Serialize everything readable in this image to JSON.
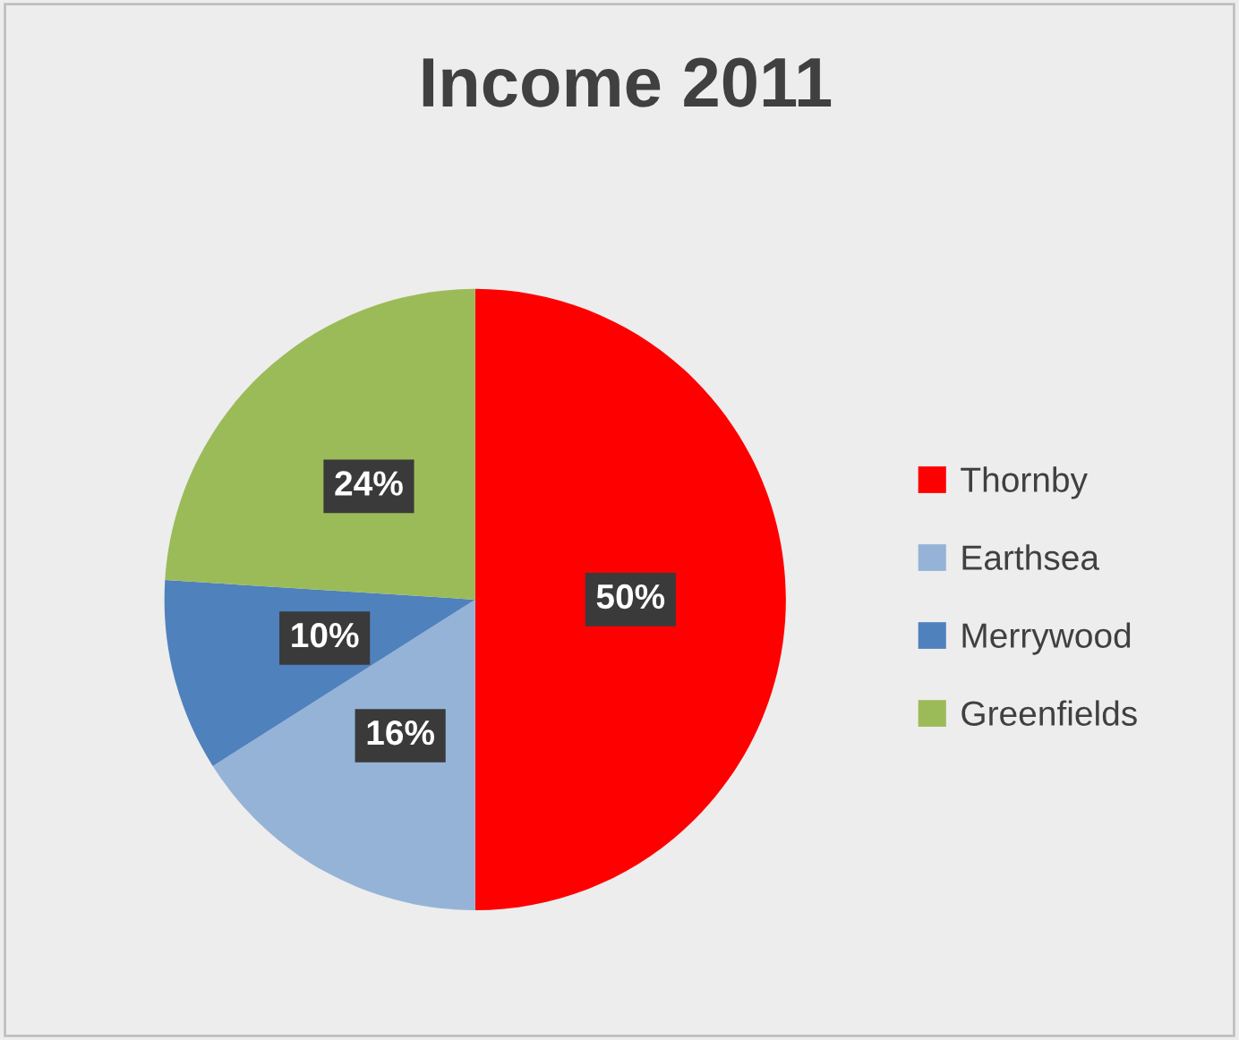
{
  "chart_data": {
    "type": "pie",
    "title": "Income 2011",
    "categories": [
      "Thornby",
      "Earthsea",
      "Merrywood",
      "Greenfields"
    ],
    "values": [
      50,
      16,
      10,
      24
    ],
    "colors": [
      "#ff0000",
      "#95b3d7",
      "#4f81bd",
      "#9bbb59"
    ],
    "value_labels": [
      "50%",
      "16%",
      "10%",
      "24%"
    ],
    "legend": "right"
  }
}
